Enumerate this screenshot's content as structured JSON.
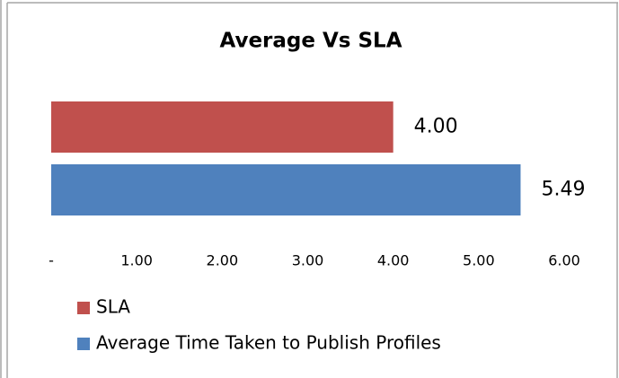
{
  "chart_data": {
    "type": "hbar",
    "title": "Average Vs SLA",
    "categories": [
      null
    ],
    "series": [
      {
        "name": "SLA",
        "color": "#c0504d",
        "values": [
          4.0
        ],
        "value_labels": [
          "4.00"
        ]
      },
      {
        "name": "Average Time Taken to Publish Profiles",
        "color": "#4f81bd",
        "values": [
          5.49
        ],
        "value_labels": [
          "5.49"
        ]
      }
    ],
    "xlim": [
      0,
      6
    ],
    "xticks": [
      {
        "value": 0,
        "label": "-"
      },
      {
        "value": 1,
        "label": "1.00"
      },
      {
        "value": 2,
        "label": "2.00"
      },
      {
        "value": 3,
        "label": "3.00"
      },
      {
        "value": 4,
        "label": "4.00"
      },
      {
        "value": 5,
        "label": "5.00"
      },
      {
        "value": 6,
        "label": "6.00"
      }
    ],
    "grid": false,
    "legend": "bottom"
  }
}
